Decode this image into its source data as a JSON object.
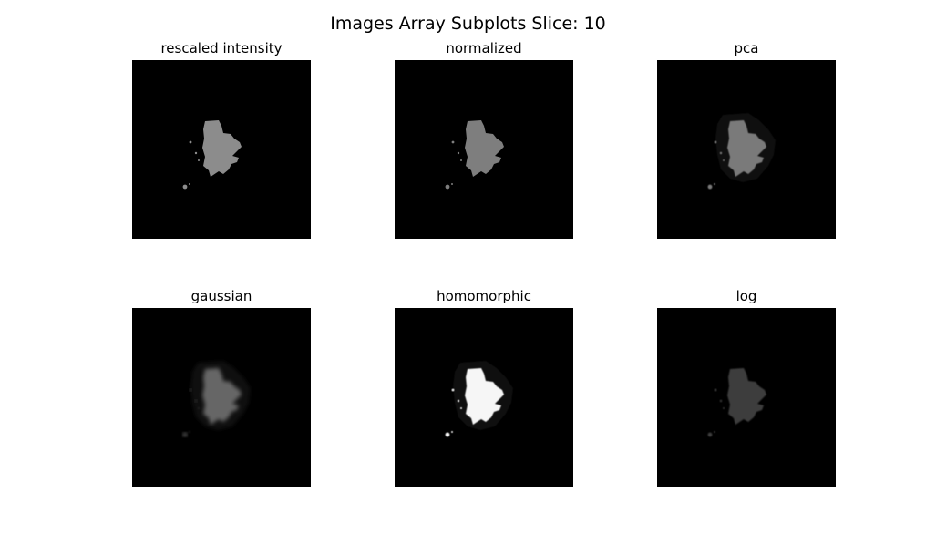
{
  "figure": {
    "suptitle": "Images Array Subplots Slice: 10"
  },
  "panels": [
    {
      "title": "rescaled intensity",
      "blob_color": "#8c8c8c",
      "blur": 0,
      "halo": false
    },
    {
      "title": "normalized",
      "blob_color": "#7e7e7e",
      "blur": 0,
      "halo": false
    },
    {
      "title": "pca",
      "blob_color": "#7a7a7a",
      "blur": 0.5,
      "halo": true
    },
    {
      "title": "gaussian",
      "blob_color": "#666666",
      "blur": 2,
      "halo": true
    },
    {
      "title": "homomorphic",
      "blob_color": "#f6f6f6",
      "blur": 0.6,
      "halo": true
    },
    {
      "title": "log",
      "blob_color": "#3c3c3c",
      "blur": 0.8,
      "halo": false
    }
  ]
}
